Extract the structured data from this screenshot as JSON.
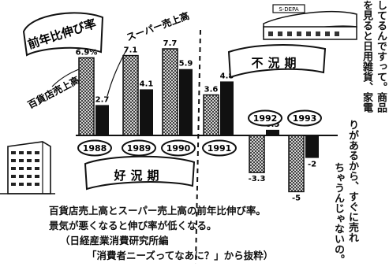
{
  "chart_data": {
    "type": "bar",
    "title": "前年比伸び率",
    "categories": [
      "1988",
      "1989",
      "1990",
      "1991",
      "1992",
      "1993"
    ],
    "series": [
      {
        "name": "百貨店売上高",
        "values": [
          6.9,
          7.1,
          7.7,
          3.6,
          -3.3,
          -5
        ]
      },
      {
        "name": "スーパー売上高",
        "values": [
          2.7,
          4.1,
          5.9,
          4.8,
          0.5,
          -2
        ]
      }
    ],
    "value_labels": {
      "department": [
        "6.9%",
        "7.1",
        "7.7",
        "3.6",
        "-3.3",
        "-5"
      ],
      "supermarket": [
        "2.7",
        "4.1",
        "5.9",
        "4.8",
        "0.5",
        "-2"
      ]
    },
    "annotations": {
      "boom": "好況期",
      "recession": "不況期"
    },
    "ylim": [
      -5.8,
      8.4
    ],
    "legend": "labels with arrows on bars",
    "colors": {
      "department": "hatched",
      "supermarket": "#111111"
    }
  },
  "caption": [
    "百貨店売上高とスーパー売上高の前年比伸び率。",
    "景気が悪くなると伸び率が低くなる。",
    "（日経産業消費研究所編",
    "「消費者ニーズってなあに？」から抜粋）"
  ],
  "side_text": [
    "してるんですって。商品",
    "を見ると日用雑貨、家電",
    "りがあるから、すぐに売れ",
    "ちゃうんじゃないの。"
  ],
  "building_sign": "S-DEPA"
}
